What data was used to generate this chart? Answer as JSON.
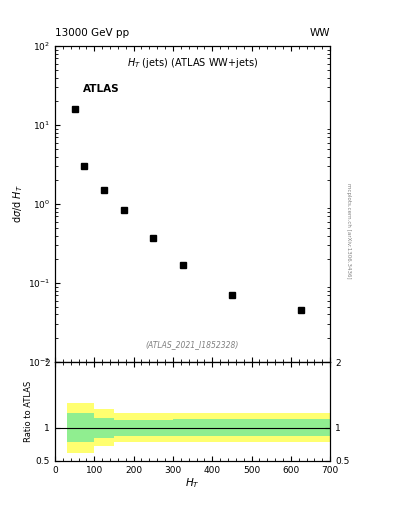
{
  "title_top_left": "13000 GeV pp",
  "title_top_right": "WW",
  "plot_title": "$H_T$ (jets) (ATLAS WW+jets)",
  "xlabel": "$H_T$",
  "ylabel_main": "d$\\sigma$/d $H_T$",
  "ylabel_ratio": "Ratio to ATLAS",
  "atlas_label": "ATLAS",
  "watermark": "(ATLAS_2021_I1852328)",
  "arxiv_text": "mcplots.cern.ch [arXiv:1306.3436]",
  "data_x": [
    50,
    75,
    125,
    175,
    250,
    325,
    450,
    625
  ],
  "data_y": [
    16.0,
    3.0,
    1.5,
    0.85,
    0.37,
    0.17,
    0.07,
    0.045
  ],
  "xlim": [
    0,
    700
  ],
  "ylim_main": [
    0.01,
    100
  ],
  "ylim_ratio": [
    0.5,
    2.0
  ],
  "band_edges": [
    30,
    100,
    150,
    200,
    300,
    400,
    500,
    600,
    700
  ],
  "green_upper": [
    1.22,
    1.15,
    1.12,
    1.12,
    1.13,
    1.13,
    1.13,
    1.13
  ],
  "green_lower": [
    0.78,
    0.85,
    0.88,
    0.88,
    0.87,
    0.87,
    0.87,
    0.87
  ],
  "yellow_upper": [
    1.38,
    1.28,
    1.22,
    1.22,
    1.22,
    1.22,
    1.22,
    1.22
  ],
  "yellow_lower": [
    0.62,
    0.72,
    0.78,
    0.78,
    0.78,
    0.78,
    0.78,
    0.78
  ],
  "marker_style": "s",
  "marker_color": "black",
  "marker_size": 4,
  "background_color": "white",
  "green_color": "#90EE90",
  "yellow_color": "#FFFF70",
  "line_color": "black",
  "fig_width": 3.93,
  "fig_height": 5.12
}
